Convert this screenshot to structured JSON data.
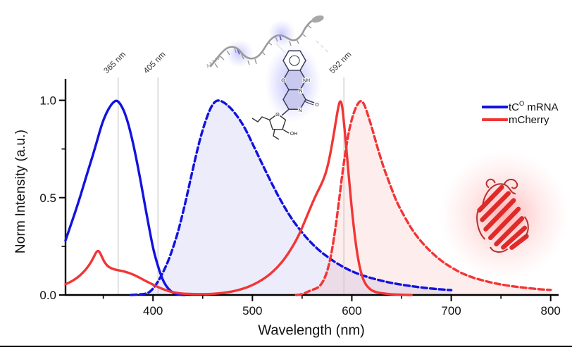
{
  "figure": {
    "background": "#ffffff",
    "bottom_border_color": "#000000"
  },
  "chart_data": {
    "type": "line",
    "title": "",
    "xlabel": "Wavelength (nm)",
    "ylabel": "Norm Intensity (a.u.)",
    "xlim": [
      312,
      808
    ],
    "ylim": [
      0,
      1.1
    ],
    "grid": false,
    "legend_position": "upper right",
    "x_ticks_major": [
      400,
      500,
      600,
      700,
      800
    ],
    "x_ticks_minor": [
      350,
      450,
      550,
      650,
      750
    ],
    "y_ticks_major": [
      0.0,
      0.5,
      1.0
    ],
    "y_tick_labels": [
      "0.0",
      "0.5",
      "1.0"
    ],
    "y_ticks_minor": [
      0.25,
      0.75
    ],
    "annotations": [
      {
        "x": 365,
        "label": "365 nm"
      },
      {
        "x": 405,
        "label": "405 nm"
      },
      {
        "x": 592,
        "label": "592 nm"
      }
    ],
    "legend": [
      {
        "main": "tC",
        "sup": "O",
        "rest": " mRNA",
        "color": "#1212e0"
      },
      {
        "main": "mCherry",
        "sup": "",
        "rest": "",
        "color": "#f23535"
      }
    ],
    "series": [
      {
        "name": "tC-O mRNA excitation",
        "color": "#1212e0",
        "style": "solid",
        "fill": false,
        "points": [
          [
            312,
            0.28
          ],
          [
            318,
            0.37
          ],
          [
            324,
            0.46
          ],
          [
            330,
            0.56
          ],
          [
            336,
            0.66
          ],
          [
            342,
            0.76
          ],
          [
            348,
            0.87
          ],
          [
            353,
            0.935
          ],
          [
            357,
            0.97
          ],
          [
            360,
            0.99
          ],
          [
            363,
            1.0
          ],
          [
            366,
            0.99
          ],
          [
            369,
            0.965
          ],
          [
            372,
            0.93
          ],
          [
            376,
            0.865
          ],
          [
            380,
            0.78
          ],
          [
            385,
            0.655
          ],
          [
            390,
            0.515
          ],
          [
            395,
            0.375
          ],
          [
            400,
            0.24
          ],
          [
            404,
            0.165
          ],
          [
            408,
            0.1
          ],
          [
            412,
            0.055
          ],
          [
            416,
            0.028
          ],
          [
            420,
            0.012
          ],
          [
            424,
            0.004
          ],
          [
            428,
            0.001
          ],
          [
            432,
            0
          ]
        ]
      },
      {
        "name": "tC-O mRNA emission",
        "color": "#1212e0",
        "style": "dashed",
        "fill": true,
        "fill_color": "rgba(110,110,215,0.13)",
        "points": [
          [
            378,
            0
          ],
          [
            391,
            0.004
          ],
          [
            396,
            0.012
          ],
          [
            400,
            0.032
          ],
          [
            405,
            0.068
          ],
          [
            410,
            0.115
          ],
          [
            415,
            0.17
          ],
          [
            420,
            0.24
          ],
          [
            425,
            0.32
          ],
          [
            430,
            0.42
          ],
          [
            435,
            0.53
          ],
          [
            440,
            0.645
          ],
          [
            445,
            0.755
          ],
          [
            450,
            0.85
          ],
          [
            455,
            0.925
          ],
          [
            459,
            0.972
          ],
          [
            463,
            0.997
          ],
          [
            467,
            1.0
          ],
          [
            471,
            0.99
          ],
          [
            475,
            0.975
          ],
          [
            480,
            0.95
          ],
          [
            486,
            0.91
          ],
          [
            492,
            0.862
          ],
          [
            498,
            0.8
          ],
          [
            505,
            0.725
          ],
          [
            512,
            0.65
          ],
          [
            519,
            0.578
          ],
          [
            526,
            0.508
          ],
          [
            533,
            0.445
          ],
          [
            540,
            0.388
          ],
          [
            547,
            0.34
          ],
          [
            554,
            0.296
          ],
          [
            561,
            0.258
          ],
          [
            568,
            0.225
          ],
          [
            575,
            0.198
          ],
          [
            582,
            0.172
          ],
          [
            590,
            0.148
          ],
          [
            598,
            0.126
          ],
          [
            607,
            0.107
          ],
          [
            616,
            0.092
          ],
          [
            626,
            0.078
          ],
          [
            636,
            0.066
          ],
          [
            646,
            0.056
          ],
          [
            656,
            0.048
          ],
          [
            666,
            0.041
          ],
          [
            676,
            0.035
          ],
          [
            686,
            0.03
          ],
          [
            694,
            0.027
          ],
          [
            700,
            0.025
          ]
        ]
      },
      {
        "name": "mCherry excitation",
        "color": "#f23535",
        "style": "solid",
        "fill": false,
        "points": [
          [
            312,
            0.055
          ],
          [
            317,
            0.067
          ],
          [
            322,
            0.082
          ],
          [
            327,
            0.102
          ],
          [
            332,
            0.128
          ],
          [
            336,
            0.155
          ],
          [
            340,
            0.19
          ],
          [
            343,
            0.222
          ],
          [
            345,
            0.228
          ],
          [
            347,
            0.215
          ],
          [
            350,
            0.18
          ],
          [
            353,
            0.155
          ],
          [
            356,
            0.142
          ],
          [
            360,
            0.133
          ],
          [
            365,
            0.127
          ],
          [
            370,
            0.122
          ],
          [
            375,
            0.115
          ],
          [
            380,
            0.105
          ],
          [
            385,
            0.093
          ],
          [
            390,
            0.079
          ],
          [
            395,
            0.066
          ],
          [
            400,
            0.053
          ],
          [
            405,
            0.041
          ],
          [
            410,
            0.03
          ],
          [
            415,
            0.021
          ],
          [
            420,
            0.014
          ],
          [
            426,
            0.009
          ],
          [
            432,
            0.006
          ],
          [
            440,
            0.0045
          ],
          [
            450,
            0.004
          ],
          [
            458,
            0.005
          ],
          [
            466,
            0.008
          ],
          [
            474,
            0.013
          ],
          [
            482,
            0.02
          ],
          [
            490,
            0.031
          ],
          [
            498,
            0.046
          ],
          [
            506,
            0.066
          ],
          [
            514,
            0.092
          ],
          [
            522,
            0.126
          ],
          [
            530,
            0.17
          ],
          [
            537,
            0.22
          ],
          [
            544,
            0.28
          ],
          [
            550,
            0.345
          ],
          [
            556,
            0.42
          ],
          [
            561,
            0.48
          ],
          [
            565,
            0.525
          ],
          [
            569,
            0.565
          ],
          [
            572,
            0.6
          ],
          [
            575,
            0.648
          ],
          [
            578,
            0.715
          ],
          [
            581,
            0.8
          ],
          [
            584,
            0.895
          ],
          [
            586,
            0.955
          ],
          [
            588,
            1.0
          ],
          [
            590,
            0.985
          ],
          [
            592,
            0.89
          ],
          [
            594,
            0.78
          ],
          [
            596,
            0.665
          ],
          [
            598,
            0.55
          ],
          [
            601,
            0.39
          ],
          [
            604,
            0.26
          ],
          [
            607,
            0.165
          ],
          [
            610,
            0.1
          ],
          [
            613,
            0.062
          ],
          [
            617,
            0.035
          ],
          [
            621,
            0.02
          ],
          [
            627,
            0.011
          ],
          [
            634,
            0.006
          ],
          [
            642,
            0.003
          ],
          [
            652,
            0.001
          ],
          [
            660,
            0
          ]
        ]
      },
      {
        "name": "mCherry emission",
        "color": "#f23535",
        "style": "dashed",
        "fill": true,
        "fill_color": "rgba(235,90,90,0.11)",
        "points": [
          [
            544,
            0
          ],
          [
            549,
            0.002
          ],
          [
            553,
            0.01
          ],
          [
            557,
            0.02
          ],
          [
            561,
            0.028
          ],
          [
            564,
            0.033
          ],
          [
            567,
            0.042
          ],
          [
            570,
            0.06
          ],
          [
            573,
            0.09
          ],
          [
            576,
            0.135
          ],
          [
            579,
            0.2
          ],
          [
            582,
            0.29
          ],
          [
            585,
            0.4
          ],
          [
            588,
            0.52
          ],
          [
            591,
            0.645
          ],
          [
            594,
            0.75
          ],
          [
            597,
            0.84
          ],
          [
            600,
            0.905
          ],
          [
            603,
            0.952
          ],
          [
            606,
            0.983
          ],
          [
            609,
            1.0
          ],
          [
            612,
            0.985
          ],
          [
            615,
            0.945
          ],
          [
            618,
            0.895
          ],
          [
            621,
            0.845
          ],
          [
            624,
            0.79
          ],
          [
            628,
            0.72
          ],
          [
            632,
            0.655
          ],
          [
            636,
            0.6
          ],
          [
            640,
            0.545
          ],
          [
            645,
            0.48
          ],
          [
            650,
            0.43
          ],
          [
            656,
            0.375
          ],
          [
            662,
            0.325
          ],
          [
            668,
            0.285
          ],
          [
            674,
            0.25
          ],
          [
            680,
            0.22
          ],
          [
            686,
            0.192
          ],
          [
            692,
            0.168
          ],
          [
            698,
            0.148
          ],
          [
            706,
            0.124
          ],
          [
            714,
            0.104
          ],
          [
            722,
            0.089
          ],
          [
            730,
            0.077
          ],
          [
            740,
            0.064
          ],
          [
            750,
            0.054
          ],
          [
            762,
            0.044
          ],
          [
            774,
            0.037
          ],
          [
            787,
            0.03
          ],
          [
            800,
            0.026
          ]
        ]
      }
    ]
  },
  "decorations": {
    "poly_a_label": "AAAAA",
    "atom_labels": {
      "o_mid": "O",
      "nh": "NH",
      "n1": "N",
      "n2": "N",
      "o_exo": "O",
      "o_ribose": "O",
      "oh": "OH"
    },
    "mrna_color": "#9a9a9a",
    "glow_blue": "#7a7aff",
    "protein_color": "#e02a2a",
    "protein_glow": "#ff5050",
    "annotation_line_color": "#c9c9c9"
  }
}
